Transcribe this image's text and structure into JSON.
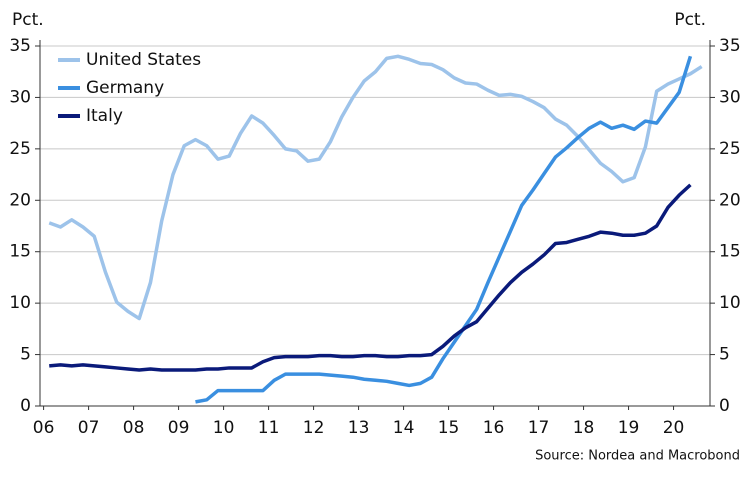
{
  "chart_data": {
    "type": "line",
    "y_label": "Pct.",
    "y2_label": "Pct.",
    "source": "Source: Nordea and Macrobond",
    "x": [
      2006.625,
      2006.875,
      2007.125,
      2007.375,
      2007.625,
      2007.875,
      2008.125,
      2008.375,
      2008.625,
      2008.875,
      2009.125,
      2009.375,
      2009.625,
      2009.875,
      2010.125,
      2010.375,
      2010.625,
      2010.875,
      2011.125,
      2011.375,
      2011.625,
      2011.875,
      2012.125,
      2012.375,
      2012.625,
      2012.875,
      2013.125,
      2013.375,
      2013.625,
      2013.875,
      2014.125,
      2014.375,
      2014.625,
      2014.875,
      2015.125,
      2015.375,
      2015.625,
      2015.875,
      2016.125,
      2016.375,
      2016.625,
      2016.875,
      2017.125,
      2017.375,
      2017.625,
      2017.875,
      2018.125,
      2018.375,
      2018.625,
      2018.875,
      2019.125,
      2019.375,
      2019.625,
      2019.875,
      2020.125,
      2020.375,
      2020.625,
      2020.875,
      2021.125
    ],
    "series": [
      {
        "name": "United States",
        "color": "#9dc3ea",
        "values": [
          17.8,
          17.4,
          18.1,
          17.4,
          16.5,
          13,
          10.1,
          9.2,
          8.5,
          12,
          18,
          22.5,
          25.3,
          25.9,
          25.3,
          24,
          24.3,
          26.5,
          28.2,
          27.5,
          26.3,
          25,
          24.8,
          23.8,
          24,
          25.7,
          28.1,
          30,
          31.6,
          32.5,
          33.8,
          34,
          33.7,
          33.3,
          33.2,
          32.7,
          31.9,
          31.4,
          31.3,
          30.7,
          30.2,
          30.3,
          30.1,
          29.6,
          29,
          27.9,
          27.3,
          26.2,
          24.9,
          23.6,
          22.8,
          21.8,
          22.2,
          25.2,
          30.6,
          31.3,
          31.8,
          32.3,
          33
        ]
      },
      {
        "name": "Germany",
        "color": "#3a8fe0",
        "values": [
          null,
          null,
          null,
          null,
          null,
          null,
          null,
          null,
          null,
          null,
          null,
          null,
          null,
          0.4,
          0.6,
          1.5,
          1.5,
          1.5,
          1.5,
          1.5,
          2.5,
          3.1,
          3.1,
          3.1,
          3.1,
          3,
          2.9,
          2.8,
          2.6,
          2.5,
          2.4,
          2.2,
          2,
          2.2,
          2.8,
          4.6,
          6.2,
          7.8,
          9.4,
          12,
          14.5,
          17,
          19.5,
          21,
          22.6,
          24.2,
          25.1,
          26.1,
          27,
          27.6,
          27,
          27.3,
          26.9,
          27.7,
          27.5,
          29,
          30.5,
          34,
          null
        ]
      },
      {
        "name": "Italy",
        "color": "#0a1a7a",
        "values": [
          3.9,
          4,
          3.9,
          4,
          3.9,
          3.8,
          3.7,
          3.6,
          3.5,
          3.6,
          3.5,
          3.5,
          3.5,
          3.5,
          3.6,
          3.6,
          3.7,
          3.7,
          3.7,
          4.3,
          4.7,
          4.8,
          4.8,
          4.8,
          4.9,
          4.9,
          4.8,
          4.8,
          4.9,
          4.9,
          4.8,
          4.8,
          4.9,
          4.9,
          5,
          5.8,
          6.8,
          7.6,
          8.2,
          9.5,
          10.8,
          12,
          13,
          13.8,
          14.7,
          15.8,
          15.9,
          16.2,
          16.5,
          16.9,
          16.8,
          16.6,
          16.6,
          16.8,
          17.5,
          19.3,
          20.5,
          21.5,
          null
        ]
      }
    ],
    "xlim": [
      2006.42,
      2021.31
    ],
    "xticks": [
      {
        "value": 2006.5,
        "label": "06"
      },
      {
        "value": 2007.5,
        "label": "07"
      },
      {
        "value": 2008.5,
        "label": "08"
      },
      {
        "value": 2009.5,
        "label": "09"
      },
      {
        "value": 2010.5,
        "label": "10"
      },
      {
        "value": 2011.5,
        "label": "11"
      },
      {
        "value": 2012.5,
        "label": "12"
      },
      {
        "value": 2013.5,
        "label": "13"
      },
      {
        "value": 2014.5,
        "label": "14"
      },
      {
        "value": 2015.5,
        "label": "15"
      },
      {
        "value": 2016.5,
        "label": "16"
      },
      {
        "value": 2017.5,
        "label": "17"
      },
      {
        "value": 2018.5,
        "label": "18"
      },
      {
        "value": 2019.5,
        "label": "19"
      },
      {
        "value": 2020.5,
        "label": "20"
      }
    ],
    "ylim": [
      0,
      35
    ],
    "yticks": [
      0,
      5,
      10,
      15,
      20,
      25,
      30,
      35
    ],
    "y2lim": [
      0,
      35
    ],
    "y2ticks": [
      0,
      5,
      10,
      15,
      20,
      25,
      30,
      35
    ],
    "grid": true,
    "legend": "top-left"
  }
}
